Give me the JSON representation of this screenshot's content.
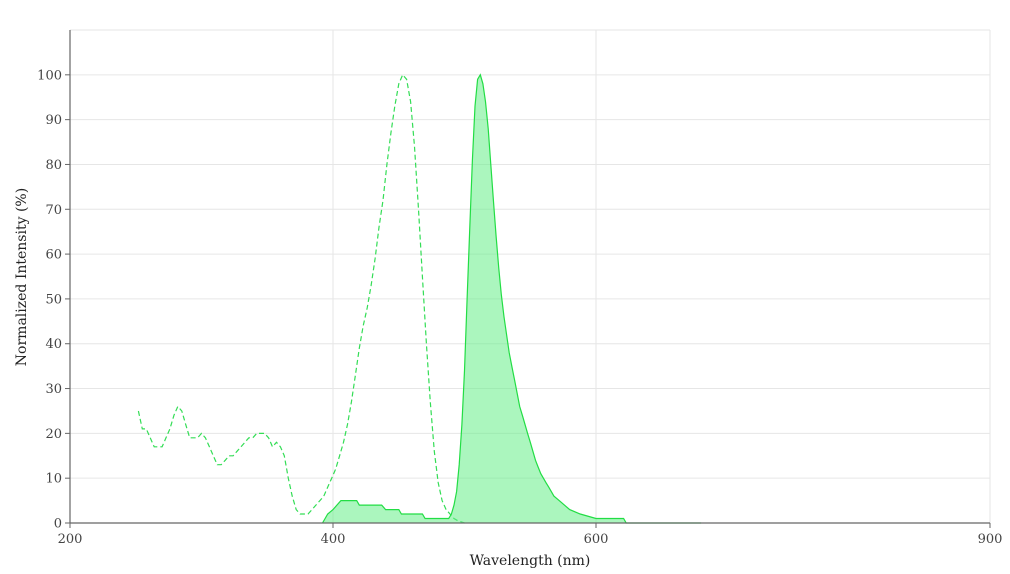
{
  "chart_data": {
    "type": "line",
    "xlabel": "Wavelength (nm)",
    "ylabel": "Normalized Intensity (%)",
    "xlim": [
      200,
      900
    ],
    "ylim": [
      0,
      110
    ],
    "x_breaks": [
      200,
      400,
      600,
      900
    ],
    "x_ticks": [
      200,
      400,
      600,
      900
    ],
    "y_ticks": [
      0,
      10,
      20,
      30,
      40,
      50,
      60,
      70,
      80,
      90,
      100
    ],
    "grid": true,
    "legend": "none",
    "series": [
      {
        "style": "dashed",
        "color": "#33dd55",
        "fill": false,
        "points": [
          [
            252,
            25
          ],
          [
            255,
            21
          ],
          [
            258,
            21
          ],
          [
            261,
            19
          ],
          [
            264,
            17
          ],
          [
            267,
            17
          ],
          [
            270,
            17
          ],
          [
            273,
            19
          ],
          [
            276,
            21
          ],
          [
            279,
            24
          ],
          [
            282,
            26
          ],
          [
            285,
            25
          ],
          [
            288,
            22
          ],
          [
            291,
            19
          ],
          [
            294,
            19
          ],
          [
            297,
            19
          ],
          [
            300,
            20
          ],
          [
            303,
            19
          ],
          [
            306,
            17
          ],
          [
            309,
            15
          ],
          [
            312,
            13
          ],
          [
            315,
            13
          ],
          [
            318,
            14
          ],
          [
            321,
            15
          ],
          [
            324,
            15
          ],
          [
            327,
            16
          ],
          [
            330,
            17
          ],
          [
            333,
            18
          ],
          [
            336,
            19
          ],
          [
            339,
            19
          ],
          [
            342,
            20
          ],
          [
            345,
            20
          ],
          [
            348,
            20
          ],
          [
            351,
            19
          ],
          [
            354,
            17
          ],
          [
            357,
            18
          ],
          [
            360,
            17
          ],
          [
            363,
            15
          ],
          [
            366,
            10
          ],
          [
            369,
            6
          ],
          [
            372,
            3
          ],
          [
            375,
            2
          ],
          [
            378,
            2
          ],
          [
            381,
            2
          ],
          [
            384,
            3
          ],
          [
            387,
            4
          ],
          [
            390,
            5
          ],
          [
            393,
            6
          ],
          [
            396,
            8
          ],
          [
            399,
            10
          ],
          [
            402,
            12
          ],
          [
            405,
            15
          ],
          [
            408,
            18
          ],
          [
            411,
            22
          ],
          [
            414,
            27
          ],
          [
            417,
            33
          ],
          [
            420,
            39
          ],
          [
            423,
            44
          ],
          [
            426,
            48
          ],
          [
            429,
            53
          ],
          [
            432,
            59
          ],
          [
            435,
            66
          ],
          [
            438,
            72
          ],
          [
            441,
            80
          ],
          [
            444,
            87
          ],
          [
            447,
            93
          ],
          [
            450,
            98
          ],
          [
            453,
            100
          ],
          [
            456,
            99
          ],
          [
            459,
            94
          ],
          [
            462,
            84
          ],
          [
            465,
            70
          ],
          [
            468,
            55
          ],
          [
            471,
            40
          ],
          [
            474,
            27
          ],
          [
            477,
            16
          ],
          [
            480,
            9
          ],
          [
            483,
            5
          ],
          [
            486,
            3
          ],
          [
            489,
            2
          ],
          [
            492,
            1
          ],
          [
            495,
            0.5
          ],
          [
            500,
            0
          ]
        ]
      },
      {
        "style": "solid",
        "color": "#22dd44",
        "fill": true,
        "fill_color": "#66ee88",
        "points": [
          [
            392,
            0
          ],
          [
            394,
            1
          ],
          [
            396,
            2
          ],
          [
            400,
            3
          ],
          [
            403,
            4
          ],
          [
            406,
            5
          ],
          [
            418,
            5
          ],
          [
            420,
            4
          ],
          [
            437,
            4
          ],
          [
            440,
            3
          ],
          [
            450,
            3
          ],
          [
            452,
            2
          ],
          [
            468,
            2
          ],
          [
            470,
            1
          ],
          [
            488,
            1
          ],
          [
            490,
            2
          ],
          [
            492,
            4
          ],
          [
            494,
            7
          ],
          [
            496,
            13
          ],
          [
            498,
            22
          ],
          [
            500,
            34
          ],
          [
            502,
            50
          ],
          [
            504,
            66
          ],
          [
            506,
            81
          ],
          [
            508,
            93
          ],
          [
            510,
            99
          ],
          [
            512,
            100
          ],
          [
            514,
            98
          ],
          [
            516,
            94
          ],
          [
            518,
            88
          ],
          [
            520,
            80
          ],
          [
            522,
            72
          ],
          [
            524,
            64
          ],
          [
            526,
            57
          ],
          [
            528,
            51
          ],
          [
            530,
            46
          ],
          [
            532,
            42
          ],
          [
            534,
            38
          ],
          [
            536,
            35
          ],
          [
            538,
            32
          ],
          [
            540,
            29
          ],
          [
            542,
            26
          ],
          [
            544,
            24
          ],
          [
            546,
            22
          ],
          [
            548,
            20
          ],
          [
            550,
            18
          ],
          [
            552,
            16
          ],
          [
            554,
            14
          ],
          [
            556,
            12.5
          ],
          [
            558,
            11
          ],
          [
            560,
            10
          ],
          [
            562,
            9
          ],
          [
            564,
            8
          ],
          [
            566,
            7
          ],
          [
            568,
            6
          ],
          [
            572,
            5
          ],
          [
            576,
            4
          ],
          [
            580,
            3
          ],
          [
            588,
            2
          ],
          [
            600,
            1
          ],
          [
            621,
            1
          ],
          [
            623,
            0
          ],
          [
            680,
            0
          ]
        ]
      }
    ]
  }
}
